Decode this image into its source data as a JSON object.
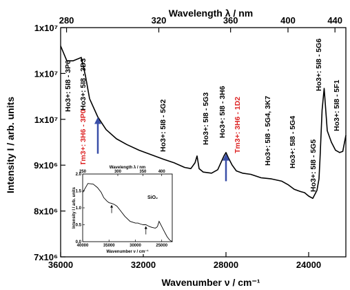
{
  "chart_data": {
    "type": "line",
    "top_axis": {
      "label": "Wavelength λ / nm",
      "ticks": [
        "280",
        "320",
        "360",
        "400",
        "440"
      ],
      "tick_values_nm": [
        280,
        320,
        360,
        400,
        440
      ]
    },
    "bottom_axis": {
      "label": "Wavenumber ν / cm⁻¹",
      "ticks": [
        "36000",
        "32000",
        "28000",
        "24000"
      ],
      "tick_values": [
        36000,
        32000,
        28000,
        24000
      ],
      "xlim": [
        36000,
        22200
      ]
    },
    "y_axis": {
      "label": "Intensity I / arb. units",
      "ticks": [
        "7x10⁶",
        "8x10⁶",
        "9x10⁶",
        "1x10⁷",
        "1x10⁷",
        "1x10⁷"
      ]
    },
    "series": [
      {
        "x": [
          36000,
          35700,
          35400,
          35000,
          34800,
          34600,
          34200,
          33800,
          33300,
          32800,
          32200,
          31600,
          31000,
          30500,
          30000,
          29700,
          29500,
          29400,
          29300,
          29100,
          28700,
          28400,
          28100,
          28000,
          27900,
          27700,
          27500,
          27200,
          26800,
          26300,
          25800,
          25300,
          25000,
          24700,
          24400,
          24200,
          24000,
          23800,
          23600,
          23500,
          23450,
          23350,
          23250,
          23100,
          22900,
          22700,
          22500,
          22350,
          22200
        ],
        "y": [
          0.92,
          0.855,
          0.855,
          0.87,
          0.79,
          0.69,
          0.61,
          0.555,
          0.515,
          0.49,
          0.465,
          0.445,
          0.425,
          0.41,
          0.39,
          0.385,
          0.41,
          0.44,
          0.385,
          0.37,
          0.365,
          0.38,
          0.44,
          0.455,
          0.435,
          0.4,
          0.375,
          0.365,
          0.36,
          0.345,
          0.34,
          0.33,
          0.315,
          0.295,
          0.285,
          0.28,
          0.265,
          0.255,
          0.29,
          0.34,
          0.43,
          0.64,
          0.735,
          0.55,
          0.5,
          0.465,
          0.455,
          0.46,
          0.53
        ]
      }
    ],
    "annotations": [
      {
        "text": "Ho3+: 5I8 - 3P6",
        "color": "#000000"
      },
      {
        "text": "Ho3+: 5I8 - 3D3",
        "color": "#000000"
      },
      {
        "text": "Tm3+: 3H6 - 3P0",
        "color": "#dd2222"
      },
      {
        "text": "Ho3+: 5I8 - 5G2",
        "color": "#000000"
      },
      {
        "text": "Ho3+: 5I8 - 5G3",
        "color": "#000000"
      },
      {
        "text": "Ho3+: 5I8 - 3H6",
        "color": "#000000"
      },
      {
        "text": "Tm3+: 3H6 - 1D2",
        "color": "#dd2222"
      },
      {
        "text": "Ho3+: 5I8 - 5G4, 3K7",
        "color": "#000000"
      },
      {
        "text": "Ho3+: 5I8 - 5G4",
        "color": "#000000"
      },
      {
        "text": "Ho3+: 5I8 - 5G5",
        "color": "#000000"
      },
      {
        "text": "Ho3+: 5I8 - 5G6",
        "color": "#000000"
      },
      {
        "text": "Ho3+: 5I8 - 5F1",
        "color": "#000000"
      }
    ],
    "arrows": [
      {
        "x": 34200
      },
      {
        "x": 28000
      }
    ],
    "arrow_color": "#3a4fa8",
    "inset": {
      "title": "SiO₂",
      "top_label": "Wavelength λ / nm",
      "top_ticks": [
        "250",
        "300",
        "350",
        "400"
      ],
      "bottom_label": "Wavenumber ν / cm⁻¹",
      "bottom_ticks": [
        "40000",
        "35000",
        "30000",
        "25000"
      ],
      "y_label": "Intensity I / arb. units",
      "y_ticks": [
        "0.0",
        "0.5",
        "1.0",
        "1.5",
        "2.0"
      ],
      "xlim": [
        40000,
        23000
      ],
      "ylim": [
        0,
        2.0
      ],
      "x": [
        40000,
        39000,
        38000,
        37200,
        36500,
        36000,
        35400,
        35000,
        34500,
        34000,
        33500,
        33000,
        32000,
        31000,
        30000,
        29500,
        29000,
        28500,
        28000,
        27600,
        27200,
        26800,
        26500,
        26200,
        26000,
        25800,
        25500,
        25000,
        24500,
        24000,
        23500,
        23000
      ],
      "y": [
        1.45,
        1.72,
        1.7,
        1.6,
        1.46,
        1.3,
        1.2,
        1.15,
        1.13,
        1.1,
        1.05,
        0.95,
        0.75,
        0.6,
        0.55,
        0.55,
        0.52,
        0.5,
        0.5,
        0.47,
        0.44,
        0.42,
        0.41,
        0.4,
        0.42,
        0.45,
        0.6,
        0.45,
        0.3,
        0.15,
        0.05,
        0.0
      ]
    }
  }
}
